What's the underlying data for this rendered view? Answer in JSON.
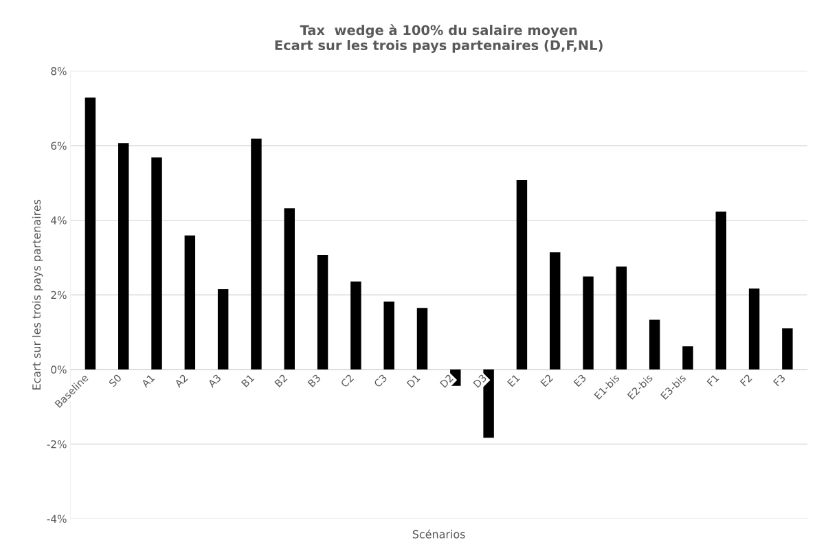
{
  "chart_data": {
    "type": "bar",
    "title": "Tax  wedge à 100% du salaire moyen\nEcart sur les trois pays partenaires (D,F,NL)",
    "xlabel": "Scénarios",
    "ylabel": "Ecart sur les trois pays partenaires",
    "categories": [
      "Baseline",
      "S0",
      "A1",
      "A2",
      "A3",
      "B1",
      "B2",
      "B3",
      "C2",
      "C3",
      "D1",
      "D2",
      "D3",
      "E1",
      "E2",
      "E3",
      "E1-bis",
      "E2-bis",
      "E3-bis",
      "F1",
      "F2",
      "F3"
    ],
    "values": [
      7.29,
      6.07,
      5.68,
      3.59,
      2.15,
      6.19,
      4.32,
      3.07,
      2.36,
      1.82,
      1.65,
      -0.44,
      -1.83,
      5.08,
      3.14,
      2.49,
      2.76,
      1.33,
      0.62,
      4.23,
      2.17,
      1.1
    ],
    "color": "#000000",
    "ylim": [
      -4,
      8
    ],
    "yticks": [
      {
        "value": -4,
        "label": "-4%"
      },
      {
        "value": -2,
        "label": "-2%"
      },
      {
        "value": 0,
        "label": "0%"
      },
      {
        "value": 2,
        "label": "2%"
      },
      {
        "value": 4,
        "label": "4%"
      },
      {
        "value": 6,
        "label": "6%"
      },
      {
        "value": 8,
        "label": "8%"
      }
    ],
    "grid": "y",
    "legend": false
  }
}
